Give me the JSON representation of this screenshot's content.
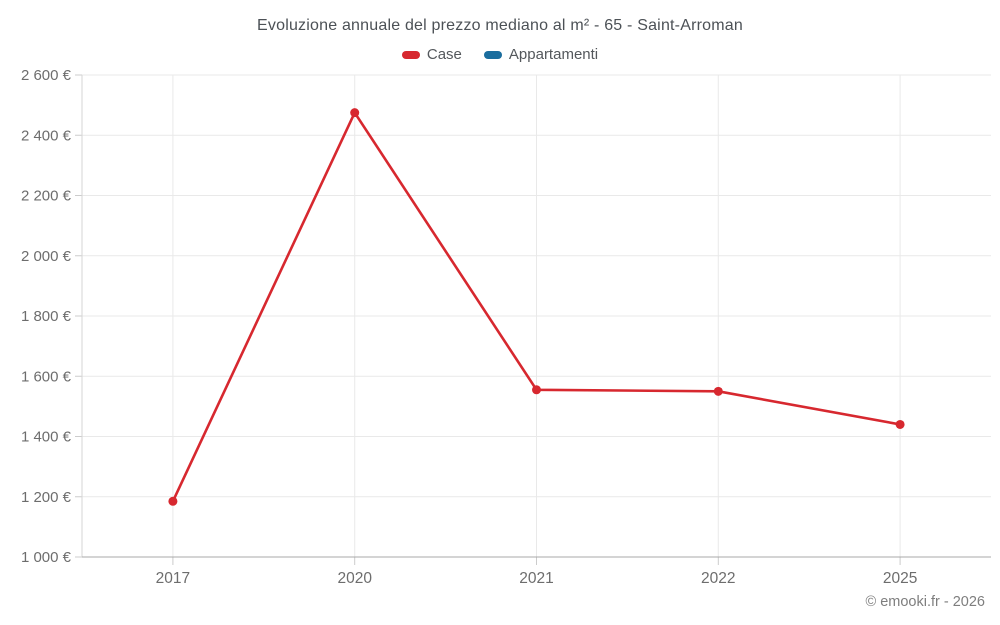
{
  "title": "Evoluzione annuale del prezzo mediano al m² - 65 - Saint-Arroman",
  "copyright": "© emooki.fr - 2026",
  "chart_data": {
    "type": "line",
    "title": "Evoluzione annuale del prezzo mediano al m² - 65 - Saint-Arroman",
    "categories": [
      "2017",
      "2020",
      "2021",
      "2022",
      "2025"
    ],
    "series": [
      {
        "name": "Case",
        "color": "#d7282f",
        "values": [
          1185,
          2475,
          1555,
          1550,
          1440
        ]
      },
      {
        "name": "Appartamenti",
        "color": "#1a6d9e",
        "values": []
      }
    ],
    "xlabel": "",
    "ylabel": "",
    "ylim": [
      1000,
      2600
    ],
    "ytick_step": 200,
    "ytick_labels": [
      "1 000 €",
      "1 200 €",
      "1 400 €",
      "1 600 €",
      "1 800 €",
      "2 000 €",
      "2 200 €",
      "2 400 €",
      "2 600 €"
    ],
    "grid": true,
    "legend_position": "top",
    "colors": {
      "grid": "#e9e9e9",
      "axis_left": "#d6d6d6",
      "axis_bottom": "#a8a8a8",
      "tick": "#cccccc",
      "tick_text": "#6d6d6d",
      "title_text": "#4c5156",
      "legend_text": "#54585c",
      "copyright_text": "#7e7e7e"
    }
  }
}
